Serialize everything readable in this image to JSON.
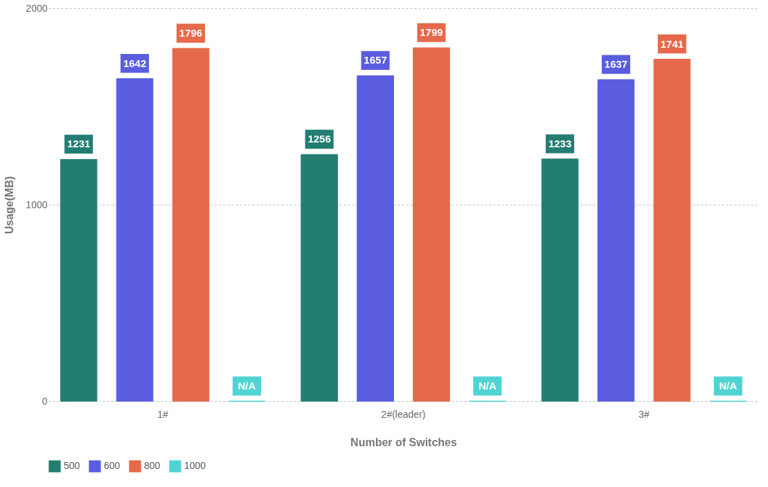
{
  "chart_data": {
    "type": "bar",
    "xlabel": "Number of Switches",
    "ylabel": "Usage(MB)",
    "categories": [
      "1#",
      "2#(leader)",
      "3#"
    ],
    "series": [
      {
        "name": "500",
        "color": "#237d72",
        "values": [
          1231,
          1256,
          1233
        ],
        "value_labels": [
          "1231",
          "1256",
          "1233"
        ]
      },
      {
        "name": "600",
        "color": "#5a5de0",
        "values": [
          1642,
          1657,
          1637
        ],
        "value_labels": [
          "1642",
          "1657",
          "1637"
        ]
      },
      {
        "name": "800",
        "color": "#e5694a",
        "values": [
          1796,
          1799,
          1741
        ],
        "value_labels": [
          "1796",
          "1799",
          "1741"
        ]
      },
      {
        "name": "1000",
        "color": "#4fd3d3",
        "values": [
          0,
          0,
          0
        ],
        "value_labels": [
          "N/A",
          "N/A",
          "N/A"
        ]
      }
    ],
    "ylim": [
      0,
      2000
    ],
    "yticks": [
      0,
      1000,
      2000
    ],
    "grid": "y",
    "legend": "bottom"
  }
}
